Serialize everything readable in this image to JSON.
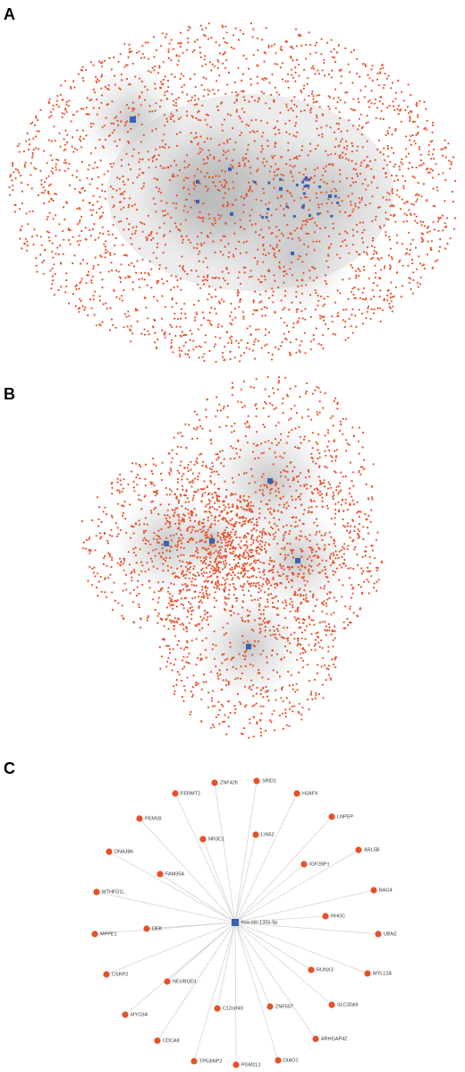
{
  "panels": [
    {
      "label": "A"
    },
    {
      "label": "B"
    },
    {
      "label": "C",
      "center": "hsa-mir-133a-5p",
      "nodes": [
        "SRID1",
        "ZNF426",
        "FERMT2",
        "H2AFX",
        "PEM1B",
        "LNPEP",
        "NR3C1",
        "LIN52",
        "DNAJB6",
        "ARL5B",
        "IGF2BP1",
        "FAM35A",
        "MTHFD1L",
        "BAG4",
        "RHOC",
        "DEK",
        "MPPE1",
        "UBN2",
        "RUNX3",
        "MYL12A",
        "CSRP2",
        "NEUROD1",
        "SLC30A9",
        "ZNF507",
        "C12orf49",
        "MYO3A",
        "ARHGAP42",
        "CDCA8",
        "TP53INP2",
        "PGM2L1",
        "DIAO1"
      ]
    }
  ]
}
